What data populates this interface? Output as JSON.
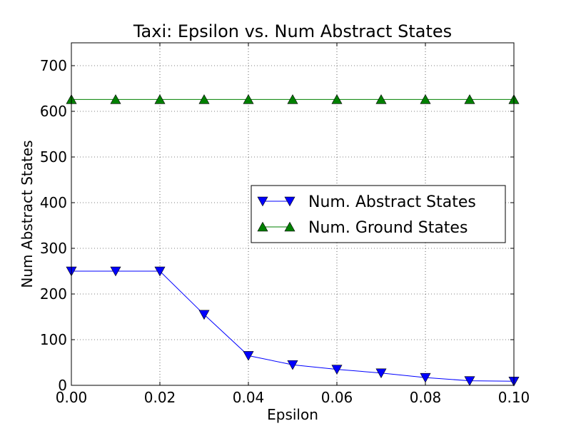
{
  "chart_data": {
    "type": "line",
    "title": "Taxi: Epsilon vs. Num Abstract States",
    "xlabel": "Epsilon",
    "ylabel": "Num Abstract States",
    "xlim": [
      0.0,
      0.1
    ],
    "ylim": [
      0,
      750
    ],
    "x_ticks": [
      0.0,
      0.02,
      0.04,
      0.06,
      0.08,
      0.1
    ],
    "x_tick_labels": [
      "0.00",
      "0.02",
      "0.04",
      "0.06",
      "0.08",
      "0.10"
    ],
    "y_ticks": [
      0,
      100,
      200,
      300,
      400,
      500,
      600,
      700
    ],
    "y_tick_labels": [
      "0",
      "100",
      "200",
      "300",
      "400",
      "500",
      "600",
      "700"
    ],
    "grid": true,
    "grid_style": "dotted",
    "legend_position": "center-right",
    "x": [
      0.0,
      0.01,
      0.02,
      0.03,
      0.04,
      0.05,
      0.06,
      0.07,
      0.08,
      0.09,
      0.1
    ],
    "series": [
      {
        "name": "Num. Abstract States",
        "color": "#0000ff",
        "marker": "triangle-down",
        "values": [
          250,
          250,
          250,
          155,
          65,
          45,
          35,
          27,
          17,
          10,
          9
        ]
      },
      {
        "name": "Num. Ground States",
        "color": "#008000",
        "marker": "triangle-up",
        "values": [
          626,
          626,
          626,
          626,
          626,
          626,
          626,
          626,
          626,
          626,
          626
        ]
      }
    ]
  }
}
